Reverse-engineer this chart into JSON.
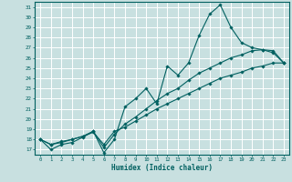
{
  "background_color": "#c8e0e0",
  "grid_color": "#ffffff",
  "line_color": "#006060",
  "xlabel": "Humidex (Indice chaleur)",
  "xlim": [
    -0.5,
    23.5
  ],
  "ylim": [
    16.5,
    31.5
  ],
  "yticks": [
    17,
    18,
    19,
    20,
    21,
    22,
    23,
    24,
    25,
    26,
    27,
    28,
    29,
    30,
    31
  ],
  "xticks": [
    0,
    1,
    2,
    3,
    4,
    5,
    6,
    7,
    8,
    9,
    10,
    11,
    12,
    13,
    14,
    15,
    16,
    17,
    18,
    19,
    20,
    21,
    22,
    23
  ],
  "line1_x": [
    0,
    1,
    2,
    3,
    4,
    5,
    6,
    7,
    8,
    9,
    10,
    11,
    12,
    13,
    14,
    15,
    16,
    17,
    18,
    19,
    20,
    21,
    22,
    23
  ],
  "line1_y": [
    18.0,
    17.0,
    17.5,
    17.7,
    18.2,
    18.8,
    16.7,
    18.0,
    21.2,
    22.0,
    23.0,
    21.5,
    25.2,
    24.3,
    25.5,
    28.2,
    30.3,
    31.2,
    29.0,
    27.5,
    27.0,
    26.8,
    26.5,
    25.5
  ],
  "line2_x": [
    0,
    1,
    2,
    3,
    4,
    5,
    6,
    7,
    8,
    9,
    10,
    11,
    12,
    13,
    14,
    15,
    16,
    17,
    18,
    19,
    20,
    21,
    22,
    23
  ],
  "line2_y": [
    18.0,
    17.5,
    17.7,
    18.0,
    18.3,
    18.8,
    17.2,
    18.5,
    19.5,
    20.2,
    21.0,
    21.8,
    22.5,
    23.0,
    23.8,
    24.5,
    25.0,
    25.5,
    26.0,
    26.3,
    26.7,
    26.8,
    26.7,
    25.5
  ],
  "line3_x": [
    0,
    1,
    2,
    3,
    4,
    5,
    6,
    7,
    8,
    9,
    10,
    11,
    12,
    13,
    14,
    15,
    16,
    17,
    18,
    19,
    20,
    21,
    22,
    23
  ],
  "line3_y": [
    18.0,
    17.5,
    17.8,
    18.0,
    18.3,
    18.7,
    17.5,
    18.8,
    19.2,
    19.8,
    20.4,
    21.0,
    21.5,
    22.0,
    22.5,
    23.0,
    23.5,
    24.0,
    24.3,
    24.6,
    25.0,
    25.2,
    25.5,
    25.5
  ]
}
